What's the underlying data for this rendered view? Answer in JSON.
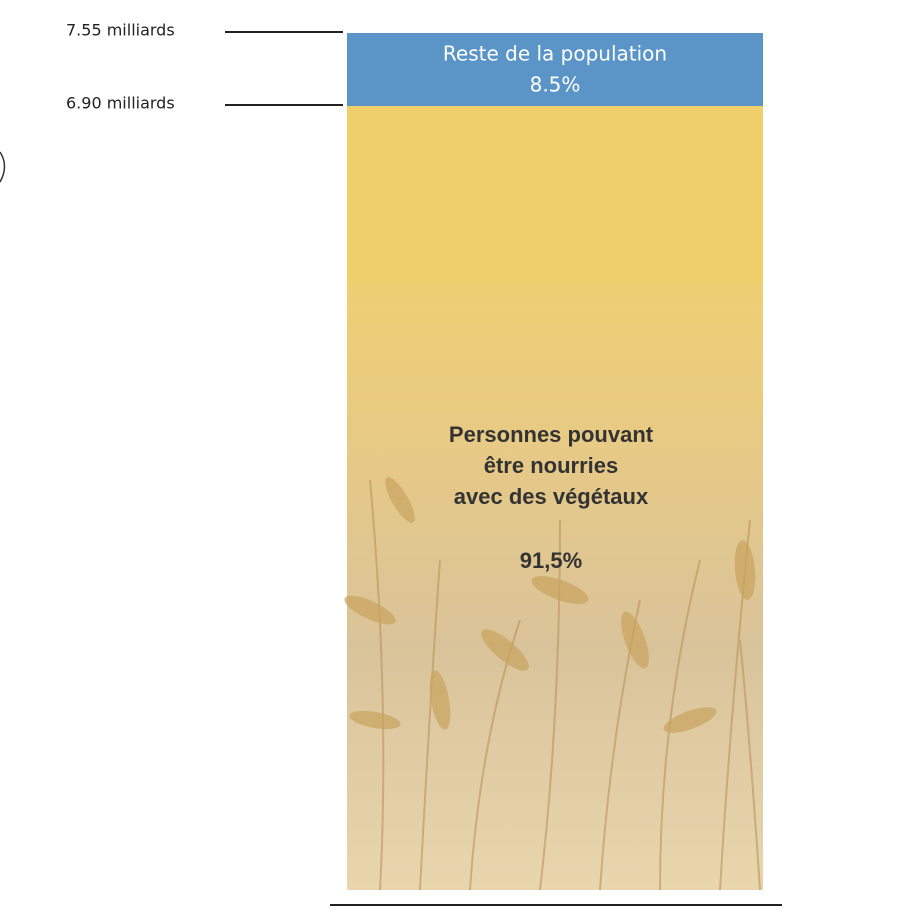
{
  "levels": [
    {
      "label": "7.55 milliards"
    },
    {
      "label": "6.90 milliards"
    }
  ],
  "top_segment": {
    "name": "Reste de la population",
    "share": "8.5%"
  },
  "main_segment": {
    "lines": [
      "Personnes pouvant",
      "être nourries",
      "avec des végétaux"
    ],
    "share": "91,5%"
  }
}
